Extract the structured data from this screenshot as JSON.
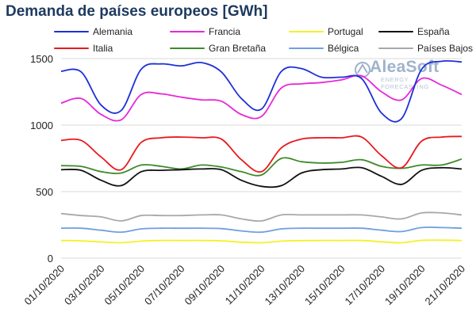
{
  "page": {
    "title": "Demanda de países europeos [GWh]"
  },
  "logo": {
    "name": "AleaSoft",
    "tagline": "ENERGY FORECASTING"
  },
  "chart_data": {
    "type": "line",
    "title": "Demanda de países europeos [GWh]",
    "xlabel": "",
    "ylabel": "",
    "ylim": [
      0,
      1500
    ],
    "yticks": [
      0,
      500,
      1000,
      1500
    ],
    "grid": "horizontal",
    "legend_position": "top",
    "x": [
      "01/10/2020",
      "02/10/2020",
      "03/10/2020",
      "04/10/2020",
      "05/10/2020",
      "06/10/2020",
      "07/10/2020",
      "08/10/2020",
      "09/10/2020",
      "10/10/2020",
      "11/10/2020",
      "12/10/2020",
      "13/10/2020",
      "14/10/2020",
      "15/10/2020",
      "16/10/2020",
      "17/10/2020",
      "18/10/2020",
      "19/10/2020",
      "20/10/2020",
      "21/10/2020"
    ],
    "x_tick_labels": [
      "01/10/2020",
      "03/10/2020",
      "05/10/2020",
      "07/10/2020",
      "09/10/2020",
      "11/10/2020",
      "13/10/2020",
      "15/10/2020",
      "17/10/2020",
      "19/10/2020",
      "21/10/2020"
    ],
    "series": [
      {
        "name": "Alemania",
        "color": "#1f2fd9",
        "values": [
          1405,
          1400,
          1150,
          1110,
          1420,
          1460,
          1445,
          1470,
          1400,
          1200,
          1120,
          1405,
          1425,
          1360,
          1360,
          1350,
          1090,
          1050,
          1420,
          1480,
          1475
        ]
      },
      {
        "name": "Francia",
        "color": "#e629d9",
        "values": [
          1165,
          1200,
          1080,
          1040,
          1230,
          1235,
          1210,
          1190,
          1180,
          1080,
          1065,
          1280,
          1310,
          1320,
          1340,
          1370,
          1250,
          1190,
          1350,
          1300,
          1230
        ]
      },
      {
        "name": "Portugal",
        "color": "#f2f22a",
        "values": [
          133,
          130,
          122,
          116,
          128,
          133,
          133,
          133,
          130,
          120,
          116,
          128,
          132,
          133,
          133,
          133,
          123,
          116,
          134,
          135,
          133
        ]
      },
      {
        "name": "España",
        "color": "#111111",
        "values": [
          665,
          660,
          585,
          545,
          650,
          660,
          665,
          670,
          665,
          585,
          540,
          545,
          640,
          665,
          670,
          680,
          615,
          555,
          660,
          680,
          670
        ]
      },
      {
        "name": "Italia",
        "color": "#e8191f",
        "values": [
          885,
          885,
          760,
          665,
          870,
          905,
          910,
          905,
          895,
          740,
          650,
          830,
          895,
          905,
          905,
          910,
          770,
          680,
          880,
          910,
          915
        ]
      },
      {
        "name": "Gran Bretaña",
        "color": "#3f8a2a",
        "values": [
          695,
          690,
          650,
          640,
          700,
          690,
          670,
          700,
          685,
          650,
          625,
          750,
          725,
          715,
          720,
          740,
          690,
          675,
          700,
          700,
          745
        ]
      },
      {
        "name": "Bélgica",
        "color": "#6f9fde",
        "values": [
          225,
          225,
          210,
          195,
          220,
          225,
          225,
          225,
          222,
          205,
          195,
          220,
          225,
          225,
          225,
          225,
          210,
          200,
          230,
          230,
          225
        ]
      },
      {
        "name": "Países Bajos",
        "color": "#a8a8a8",
        "values": [
          335,
          320,
          310,
          280,
          320,
          320,
          320,
          325,
          325,
          295,
          280,
          325,
          325,
          325,
          325,
          325,
          310,
          295,
          340,
          340,
          325
        ]
      }
    ]
  }
}
